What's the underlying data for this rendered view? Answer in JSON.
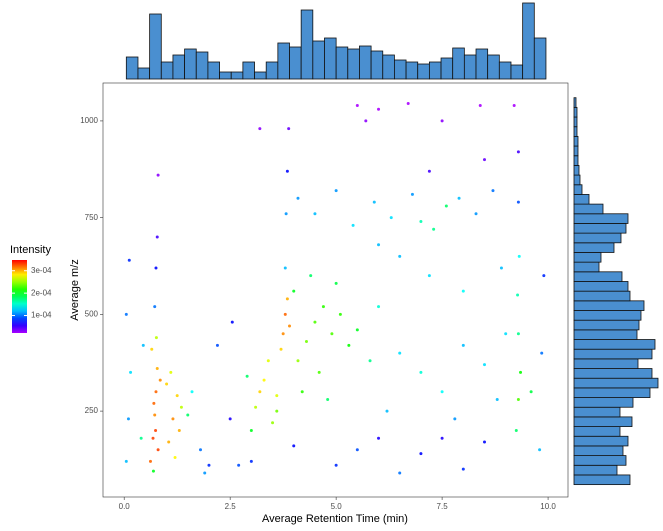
{
  "chart_data": [
    {
      "type": "scatter",
      "xlabel": "Average Retention Time (min)",
      "ylabel": "Average m/z",
      "xlim": [
        -0.5,
        10.47
      ],
      "ylim": [
        28,
        1098
      ],
      "xticks": [
        {
          "value": 0,
          "label": "0.0"
        },
        {
          "value": 2.5,
          "label": "2.5"
        },
        {
          "value": 5,
          "label": "5.0"
        },
        {
          "value": 7.5,
          "label": "7.5"
        },
        {
          "value": 10,
          "label": "10.0"
        }
      ],
      "yticks": [
        250,
        500,
        750,
        1000
      ],
      "grid": false,
      "x": [
        0.62,
        0.68,
        0.72,
        0.75,
        0.78,
        0.65,
        0.8,
        0.7,
        0.85,
        0.74,
        0.69,
        0.76,
        0.72,
        0.75,
        0.78,
        0.8,
        1.05,
        1.15,
        1.25,
        1.1,
        1.3,
        1.2,
        1.35,
        1.0,
        1.5,
        1.6,
        0.05,
        0.1,
        0.15,
        0.05,
        0.12,
        0.4,
        0.45,
        1.8,
        2.0,
        2.2,
        2.5,
        2.55,
        2.7,
        1.9,
        3.1,
        3.3,
        3.5,
        3.4,
        3.2,
        3.6,
        3.0,
        2.9,
        3.75,
        3.8,
        3.85,
        3.7,
        3.9,
        3.8,
        3.82,
        3.85,
        3.88,
        3.2,
        4.1,
        4.3,
        4.5,
        4.7,
        4.9,
        5.1,
        5.3,
        4.6,
        4.2,
        5.5,
        5.8,
        4.0,
        4.4,
        5.0,
        6.0,
        3.6,
        4.8,
        4.1,
        4.5,
        5.0,
        5.4,
        5.9,
        6.3,
        6.8,
        7.0,
        7.3,
        7.6,
        7.9,
        8.3,
        8.7,
        9.3,
        6.5,
        7.2,
        8.0,
        8.9,
        6.0,
        6.5,
        7.0,
        7.5,
        8.0,
        8.5,
        6.2,
        7.8,
        8.8,
        9.0,
        3.0,
        4.0,
        5.0,
        6.0,
        7.0,
        8.0,
        8.5,
        5.5,
        6.5,
        7.5,
        9.25,
        9.3,
        9.35,
        9.3,
        9.28,
        9.32,
        9.3,
        9.8,
        9.85,
        9.9,
        9.6,
        5.5,
        5.7,
        6.0,
        6.7,
        7.5,
        8.4,
        9.2,
        8.5,
        7.2
      ],
      "values": [
        120,
        180,
        240,
        300,
        360,
        410,
        150,
        270,
        330,
        200,
        95,
        440,
        520,
        620,
        700,
        860,
        170,
        230,
        290,
        350,
        200,
        130,
        260,
        320,
        240,
        300,
        120,
        230,
        350,
        500,
        640,
        180,
        420,
        150,
        110,
        420,
        230,
        480,
        110,
        90,
        260,
        330,
        220,
        380,
        300,
        290,
        200,
        340,
        450,
        500,
        540,
        410,
        470,
        620,
        760,
        870,
        980,
        980,
        380,
        430,
        480,
        520,
        450,
        500,
        420,
        350,
        300,
        460,
        380,
        560,
        600,
        580,
        520,
        250,
        280,
        800,
        760,
        820,
        730,
        790,
        750,
        810,
        740,
        720,
        780,
        800,
        760,
        820,
        790,
        650,
        600,
        560,
        620,
        680,
        400,
        350,
        300,
        420,
        370,
        250,
        230,
        280,
        450,
        120,
        160,
        110,
        180,
        140,
        100,
        170,
        150,
        90,
        180,
        200,
        280,
        350,
        450,
        550,
        650,
        920,
        150,
        400,
        600,
        300,
        1040,
        1000,
        1030,
        1045,
        1000,
        1040,
        1040,
        900,
        870
      ],
      "color_values": [
        0.00032,
        0.00033,
        0.00031,
        0.00032,
        0.0003,
        0.00029,
        0.00033,
        0.00032,
        0.00031,
        0.00033,
        0.0002,
        0.00026,
        0.0001,
        7e-05,
        5e-05,
        3e-05,
        0.0003,
        0.00031,
        0.00029,
        0.00027,
        0.0003,
        0.00028,
        0.00026,
        0.00029,
        0.00018,
        0.00014,
        0.00012,
        0.00011,
        0.00013,
        0.0001,
        8e-05,
        0.00017,
        0.00012,
        0.0001,
        8e-05,
        9e-05,
        6e-05,
        7e-05,
        9e-05,
        0.00011,
        0.00026,
        0.00028,
        0.00025,
        0.00027,
        0.00029,
        0.00027,
        0.0002,
        0.00018,
        0.00031,
        0.00032,
        0.0003,
        0.00029,
        0.00031,
        0.00012,
        0.00011,
        7e-05,
        4e-05,
        3e-05,
        0.00025,
        0.00024,
        0.00023,
        0.00022,
        0.00023,
        0.00022,
        0.00021,
        0.00023,
        0.00022,
        0.0002,
        0.00017,
        0.0002,
        0.00018,
        0.00019,
        0.00015,
        0.00024,
        0.00018,
        0.00011,
        0.00012,
        0.00011,
        0.00013,
        0.00012,
        0.00013,
        0.00011,
        0.00016,
        0.00017,
        0.00018,
        0.00012,
        0.00011,
        0.0001,
        9e-05,
        0.00012,
        0.00013,
        0.00014,
        0.00012,
        0.00012,
        0.00013,
        0.00015,
        0.00014,
        0.00012,
        0.00013,
        0.00012,
        0.00011,
        0.00012,
        0.00013,
        8e-05,
        7e-05,
        8e-05,
        6e-05,
        7e-05,
        8e-05,
        7e-05,
        9e-05,
        0.0001,
        6e-05,
        0.00018,
        0.00023,
        0.00021,
        0.00017,
        0.00016,
        0.00014,
        5e-05,
        0.00012,
        0.0001,
        8e-05,
        0.00019,
        2e-05,
        3e-05,
        2e-05,
        2e-05,
        3e-05,
        2e-05,
        2e-05,
        4e-05,
        5e-05
      ],
      "colorbar": {
        "title": "Intensity",
        "lim": [
          2.2e-05,
          0.000348
        ],
        "ticks": [
          {
            "value": 0.0001,
            "label": "1e-04"
          },
          {
            "value": 0.0002,
            "label": "2e-04"
          },
          {
            "value": 0.0003,
            "label": "3e-04"
          }
        ]
      }
    },
    {
      "type": "histogram",
      "orientation": "vertical",
      "color": "#4a8fd0",
      "bins": [
        0.05,
        0.325,
        0.6,
        0.875,
        1.15,
        1.425,
        1.7,
        1.975,
        2.25,
        2.525,
        2.8,
        3.075,
        3.35,
        3.625,
        3.9,
        4.175,
        4.45,
        4.725,
        5.0,
        5.275,
        5.55,
        5.825,
        6.1,
        6.375,
        6.65,
        6.925,
        7.2,
        7.475,
        7.75,
        8.025,
        8.3,
        8.575,
        8.85,
        9.125,
        9.4,
        9.675,
        9.95
      ],
      "counts": [
        22,
        11,
        65,
        17,
        24,
        30,
        27,
        17,
        7,
        7,
        17,
        7,
        17,
        36,
        32,
        69,
        38,
        41,
        32,
        30,
        33,
        28,
        24,
        19,
        17,
        15,
        17,
        21,
        31,
        24,
        30,
        24,
        17,
        14,
        76,
        41
      ]
    },
    {
      "type": "histogram",
      "orientation": "horizontal",
      "color": "#4a8fd0",
      "bins": [
        60,
        85,
        110,
        135,
        160,
        185,
        210,
        235,
        260,
        285,
        310,
        335,
        360,
        385,
        410,
        435,
        460,
        485,
        510,
        535,
        560,
        585,
        610,
        635,
        660,
        685,
        710,
        735,
        760,
        785,
        810,
        835,
        860,
        885,
        910,
        935,
        960,
        985,
        1010,
        1035,
        1060
      ],
      "counts": [
        56,
        43,
        52,
        49,
        54,
        46,
        58,
        46,
        59,
        76,
        84,
        78,
        64,
        78,
        81,
        63,
        65,
        67,
        70,
        56,
        54,
        48,
        25,
        27,
        40,
        47,
        52,
        54,
        29,
        15,
        8,
        6,
        5,
        4,
        4,
        4,
        3,
        3,
        3,
        2
      ]
    }
  ]
}
